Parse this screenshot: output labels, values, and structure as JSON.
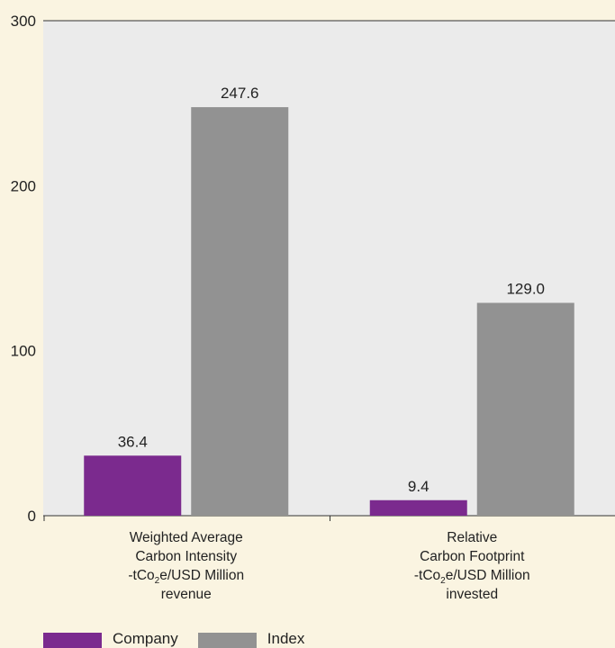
{
  "chart_data": {
    "type": "bar",
    "categories": [
      [
        "Weighted Average",
        "Carbon Intensity",
        "-tCo2e/USD Million",
        "revenue"
      ],
      [
        "Relative",
        "Carbon Footprint",
        "-tCo2e/USD Million",
        "invested"
      ]
    ],
    "series": [
      {
        "name": "Company",
        "values": [
          36.4,
          9.4
        ],
        "labels": [
          "36.4",
          "9.4"
        ],
        "color": "#7b2a8e"
      },
      {
        "name": "Index",
        "values": [
          247.6,
          129.0
        ],
        "labels": [
          "247.6",
          "129.0"
        ],
        "color": "#929292"
      }
    ],
    "ylim": [
      0,
      300
    ],
    "yticks": [
      0,
      100,
      200,
      300
    ],
    "grid": false,
    "legend": "bottom-left",
    "plot_background": "#ebebeb",
    "page_background": "#faf4e1"
  },
  "legend": {
    "company": "Company",
    "index": "Index"
  }
}
